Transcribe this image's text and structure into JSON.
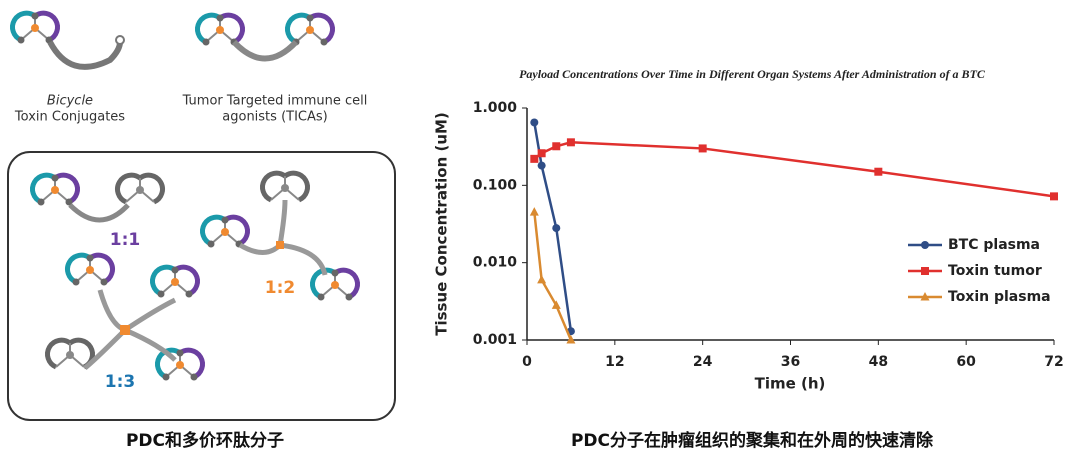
{
  "diagram": {
    "top_left": {
      "line1": "Bicycle",
      "line2": "Toxin Conjugates"
    },
    "top_right": {
      "line1": "Tumor Targeted immune cell",
      "line2": "agonists (TICAs)"
    },
    "ratios": [
      "1:1",
      "1:2",
      "1:3"
    ]
  },
  "captions": {
    "left": "PDC和多价环肽分子",
    "right": "PDC分子在肿瘤组织的聚集和在外周的快速清除"
  },
  "chart_data": {
    "type": "line",
    "title": "Payload Concentrations Over Time in Different Organ Systems After Administration of a BTC",
    "x_label": "Time (h)",
    "y_label": "Tissue Concentration (uM)",
    "log_y": true,
    "legend": "center right",
    "grid": false,
    "xlim": [
      0,
      72
    ],
    "xticks": [
      0,
      12,
      24,
      36,
      48,
      60,
      72
    ],
    "ylim": [
      0.001,
      1
    ],
    "yticks": [
      {
        "value": 0.001,
        "label": "0.001"
      },
      {
        "value": 0.01,
        "label": "0.010"
      },
      {
        "value": 0.1,
        "label": "0.100"
      },
      {
        "value": 1,
        "label": "1.000"
      }
    ],
    "series": [
      {
        "name": "BTC plasma",
        "color": "#2f4d86",
        "marker": "circle",
        "x": [
          1,
          2,
          4,
          6
        ],
        "values": [
          0.65,
          0.18,
          0.028,
          0.0013
        ]
      },
      {
        "name": "Toxin tumor",
        "color": "#e0302e",
        "marker": "square",
        "x": [
          1,
          2,
          4,
          6,
          24,
          48,
          72
        ],
        "values": [
          0.22,
          0.26,
          0.32,
          0.36,
          0.3,
          0.15,
          0.072
        ]
      },
      {
        "name": "Toxin plasma",
        "color": "#d98a30",
        "marker": "triangle",
        "x": [
          1,
          2,
          4,
          6
        ],
        "values": [
          0.045,
          0.006,
          0.0028,
          0.001
        ]
      }
    ]
  }
}
